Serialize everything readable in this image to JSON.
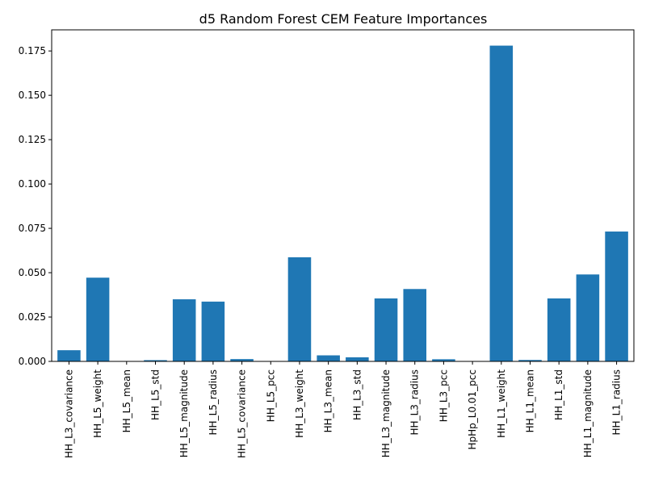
{
  "chart_data": {
    "type": "bar",
    "title": "d5 Random Forest CEM Feature Importances",
    "xlabel": "",
    "ylabel": "",
    "categories": [
      "HH_L3_covariance",
      "HH_L5_weight",
      "HH_L5_mean",
      "HH_L5_std",
      "HH_L5_magnitude",
      "HH_L5_radius",
      "HH_L5_covariance",
      "HH_L5_pcc",
      "HH_L3_weight",
      "HH_L3_mean",
      "HH_L3_std",
      "HH_L3_magnitude",
      "HH_L3_radius",
      "HH_L3_pcc",
      "HpHp_L0.01_pcc",
      "HH_L1_weight",
      "HH_L1_mean",
      "HH_L1_std",
      "HH_L1_magnitude",
      "HH_L1_radius"
    ],
    "values": [
      0.0063,
      0.0472,
      0.0,
      0.0007,
      0.035,
      0.0337,
      0.0013,
      0.0,
      0.0587,
      0.0034,
      0.0023,
      0.0355,
      0.0408,
      0.0012,
      0.0,
      0.178,
      0.0008,
      0.0355,
      0.049,
      0.0732
    ],
    "ylim": [
      0,
      0.1869
    ],
    "yticks": [
      0.0,
      0.025,
      0.05,
      0.075,
      0.1,
      0.125,
      0.15,
      0.175
    ],
    "ytick_labels": [
      "0.000",
      "0.025",
      "0.050",
      "0.075",
      "0.100",
      "0.125",
      "0.150",
      "0.175"
    ],
    "grid": false,
    "bar_color": "#1f77b4"
  }
}
